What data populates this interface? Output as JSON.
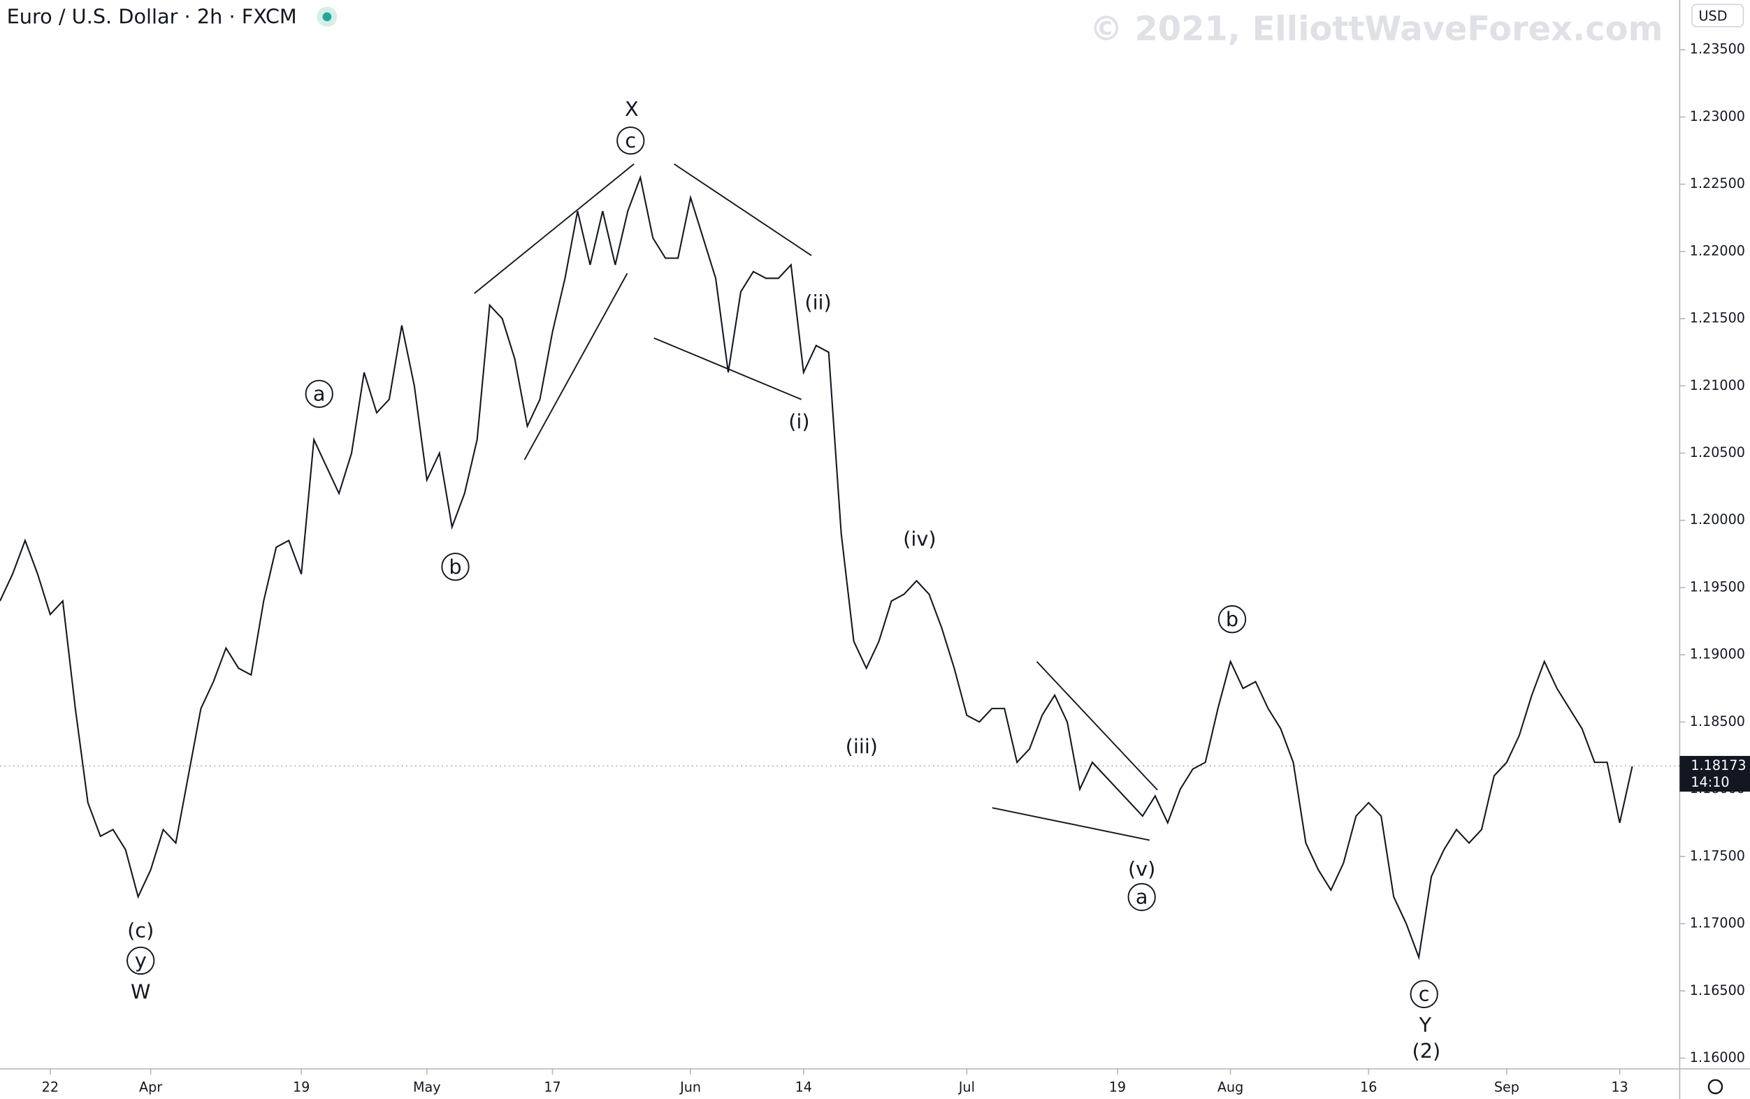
{
  "chart_data": {
    "type": "line",
    "title": "Euro / U.S. Dollar · 2h · FXCM",
    "watermark": "© 2021, ElliottWaveForex.com",
    "currency": "USD",
    "last_price": 1.18173,
    "countdown": "14:10",
    "categories": [
      null,
      null,
      null,
      null,
      "22",
      null,
      null,
      null,
      null,
      null,
      null,
      null,
      "Apr",
      null,
      null,
      null,
      null,
      null,
      null,
      null,
      null,
      null,
      null,
      null,
      "19",
      null,
      null,
      null,
      null,
      null,
      null,
      null,
      null,
      null,
      "May",
      null,
      null,
      null,
      null,
      null,
      null,
      null,
      null,
      null,
      "17",
      null,
      null,
      null,
      null,
      null,
      null,
      null,
      null,
      null,
      null,
      "Jun",
      null,
      null,
      null,
      null,
      null,
      null,
      null,
      null,
      "14",
      null,
      null,
      null,
      null,
      null,
      null,
      null,
      null,
      null,
      null,
      null,
      null,
      "Jul",
      null,
      null,
      null,
      null,
      null,
      null,
      null,
      null,
      null,
      null,
      null,
      "19",
      null,
      null,
      null,
      null,
      null,
      null,
      null,
      null,
      "Aug",
      null,
      null,
      null,
      null,
      null,
      null,
      null,
      null,
      null,
      null,
      "16",
      null,
      null,
      null,
      null,
      null,
      null,
      null,
      null,
      null,
      null,
      "Sep",
      null,
      null,
      null,
      null,
      null,
      null,
      null,
      null,
      "13",
      null
    ],
    "series": [
      {
        "name": "EURUSD",
        "color": "#131722",
        "values": [
          1.194,
          1.196,
          1.1985,
          1.196,
          1.193,
          1.194,
          1.186,
          1.179,
          1.1765,
          1.177,
          1.1755,
          1.172,
          1.174,
          1.177,
          1.176,
          1.181,
          1.186,
          1.188,
          1.1905,
          1.189,
          1.1885,
          1.194,
          1.198,
          1.1985,
          1.196,
          1.206,
          1.204,
          1.202,
          1.205,
          1.211,
          1.208,
          1.209,
          1.2145,
          1.21,
          1.203,
          1.205,
          1.1995,
          1.202,
          1.206,
          1.216,
          1.215,
          1.212,
          1.207,
          1.209,
          1.214,
          1.218,
          1.223,
          1.219,
          1.223,
          1.219,
          1.223,
          1.2255,
          1.221,
          1.2195,
          1.2195,
          1.224,
          1.221,
          1.218,
          1.211,
          1.217,
          1.2185,
          1.218,
          1.218,
          1.219,
          1.211,
          1.213,
          1.2125,
          1.199,
          1.191,
          1.189,
          1.191,
          1.194,
          1.1945,
          1.1955,
          1.1945,
          1.192,
          1.189,
          1.1855,
          1.185,
          1.186,
          1.186,
          1.182,
          1.183,
          1.1855,
          1.187,
          1.185,
          1.18,
          1.182,
          1.181,
          1.18,
          1.179,
          1.178,
          1.1795,
          1.1775,
          1.18,
          1.1815,
          1.182,
          1.186,
          1.1895,
          1.1875,
          1.188,
          1.186,
          1.1845,
          1.182,
          1.176,
          1.174,
          1.1725,
          1.1745,
          1.178,
          1.179,
          1.178,
          1.172,
          1.17,
          1.1675,
          1.1735,
          1.1755,
          1.177,
          1.176,
          1.177,
          1.181,
          1.182,
          1.184,
          1.187,
          1.1895,
          1.1875,
          1.186,
          1.1845,
          1.182,
          1.182,
          1.1775,
          1.1817
        ]
      }
    ],
    "ylim": [
      1.1592,
      1.2387
    ],
    "yticks": [
      {
        "value": 1.16,
        "label": "1.16000"
      },
      {
        "value": 1.165,
        "label": "1.16500"
      },
      {
        "value": 1.17,
        "label": "1.17000"
      },
      {
        "value": 1.175,
        "label": "1.17500"
      },
      {
        "value": 1.18,
        "label": "1.18000"
      },
      {
        "value": 1.185,
        "label": "1.18500"
      },
      {
        "value": 1.19,
        "label": "1.19000"
      },
      {
        "value": 1.195,
        "label": "1.19500"
      },
      {
        "value": 1.2,
        "label": "1.20000"
      },
      {
        "value": 1.205,
        "label": "1.20500"
      },
      {
        "value": 1.21,
        "label": "1.21000"
      },
      {
        "value": 1.215,
        "label": "1.21500"
      },
      {
        "value": 1.22,
        "label": "1.22000"
      },
      {
        "value": 1.225,
        "label": "1.22500"
      },
      {
        "value": 1.23,
        "label": "1.23000"
      },
      {
        "value": 1.235,
        "label": "1.23500"
      }
    ],
    "annotations": [
      "X",
      "c",
      "a",
      "b",
      "(ii)",
      "(i)",
      "(iv)",
      "(iii)",
      "b",
      "(v)",
      "a",
      "(c)",
      "y",
      "W",
      "c",
      "Y",
      "(2)"
    ]
  }
}
